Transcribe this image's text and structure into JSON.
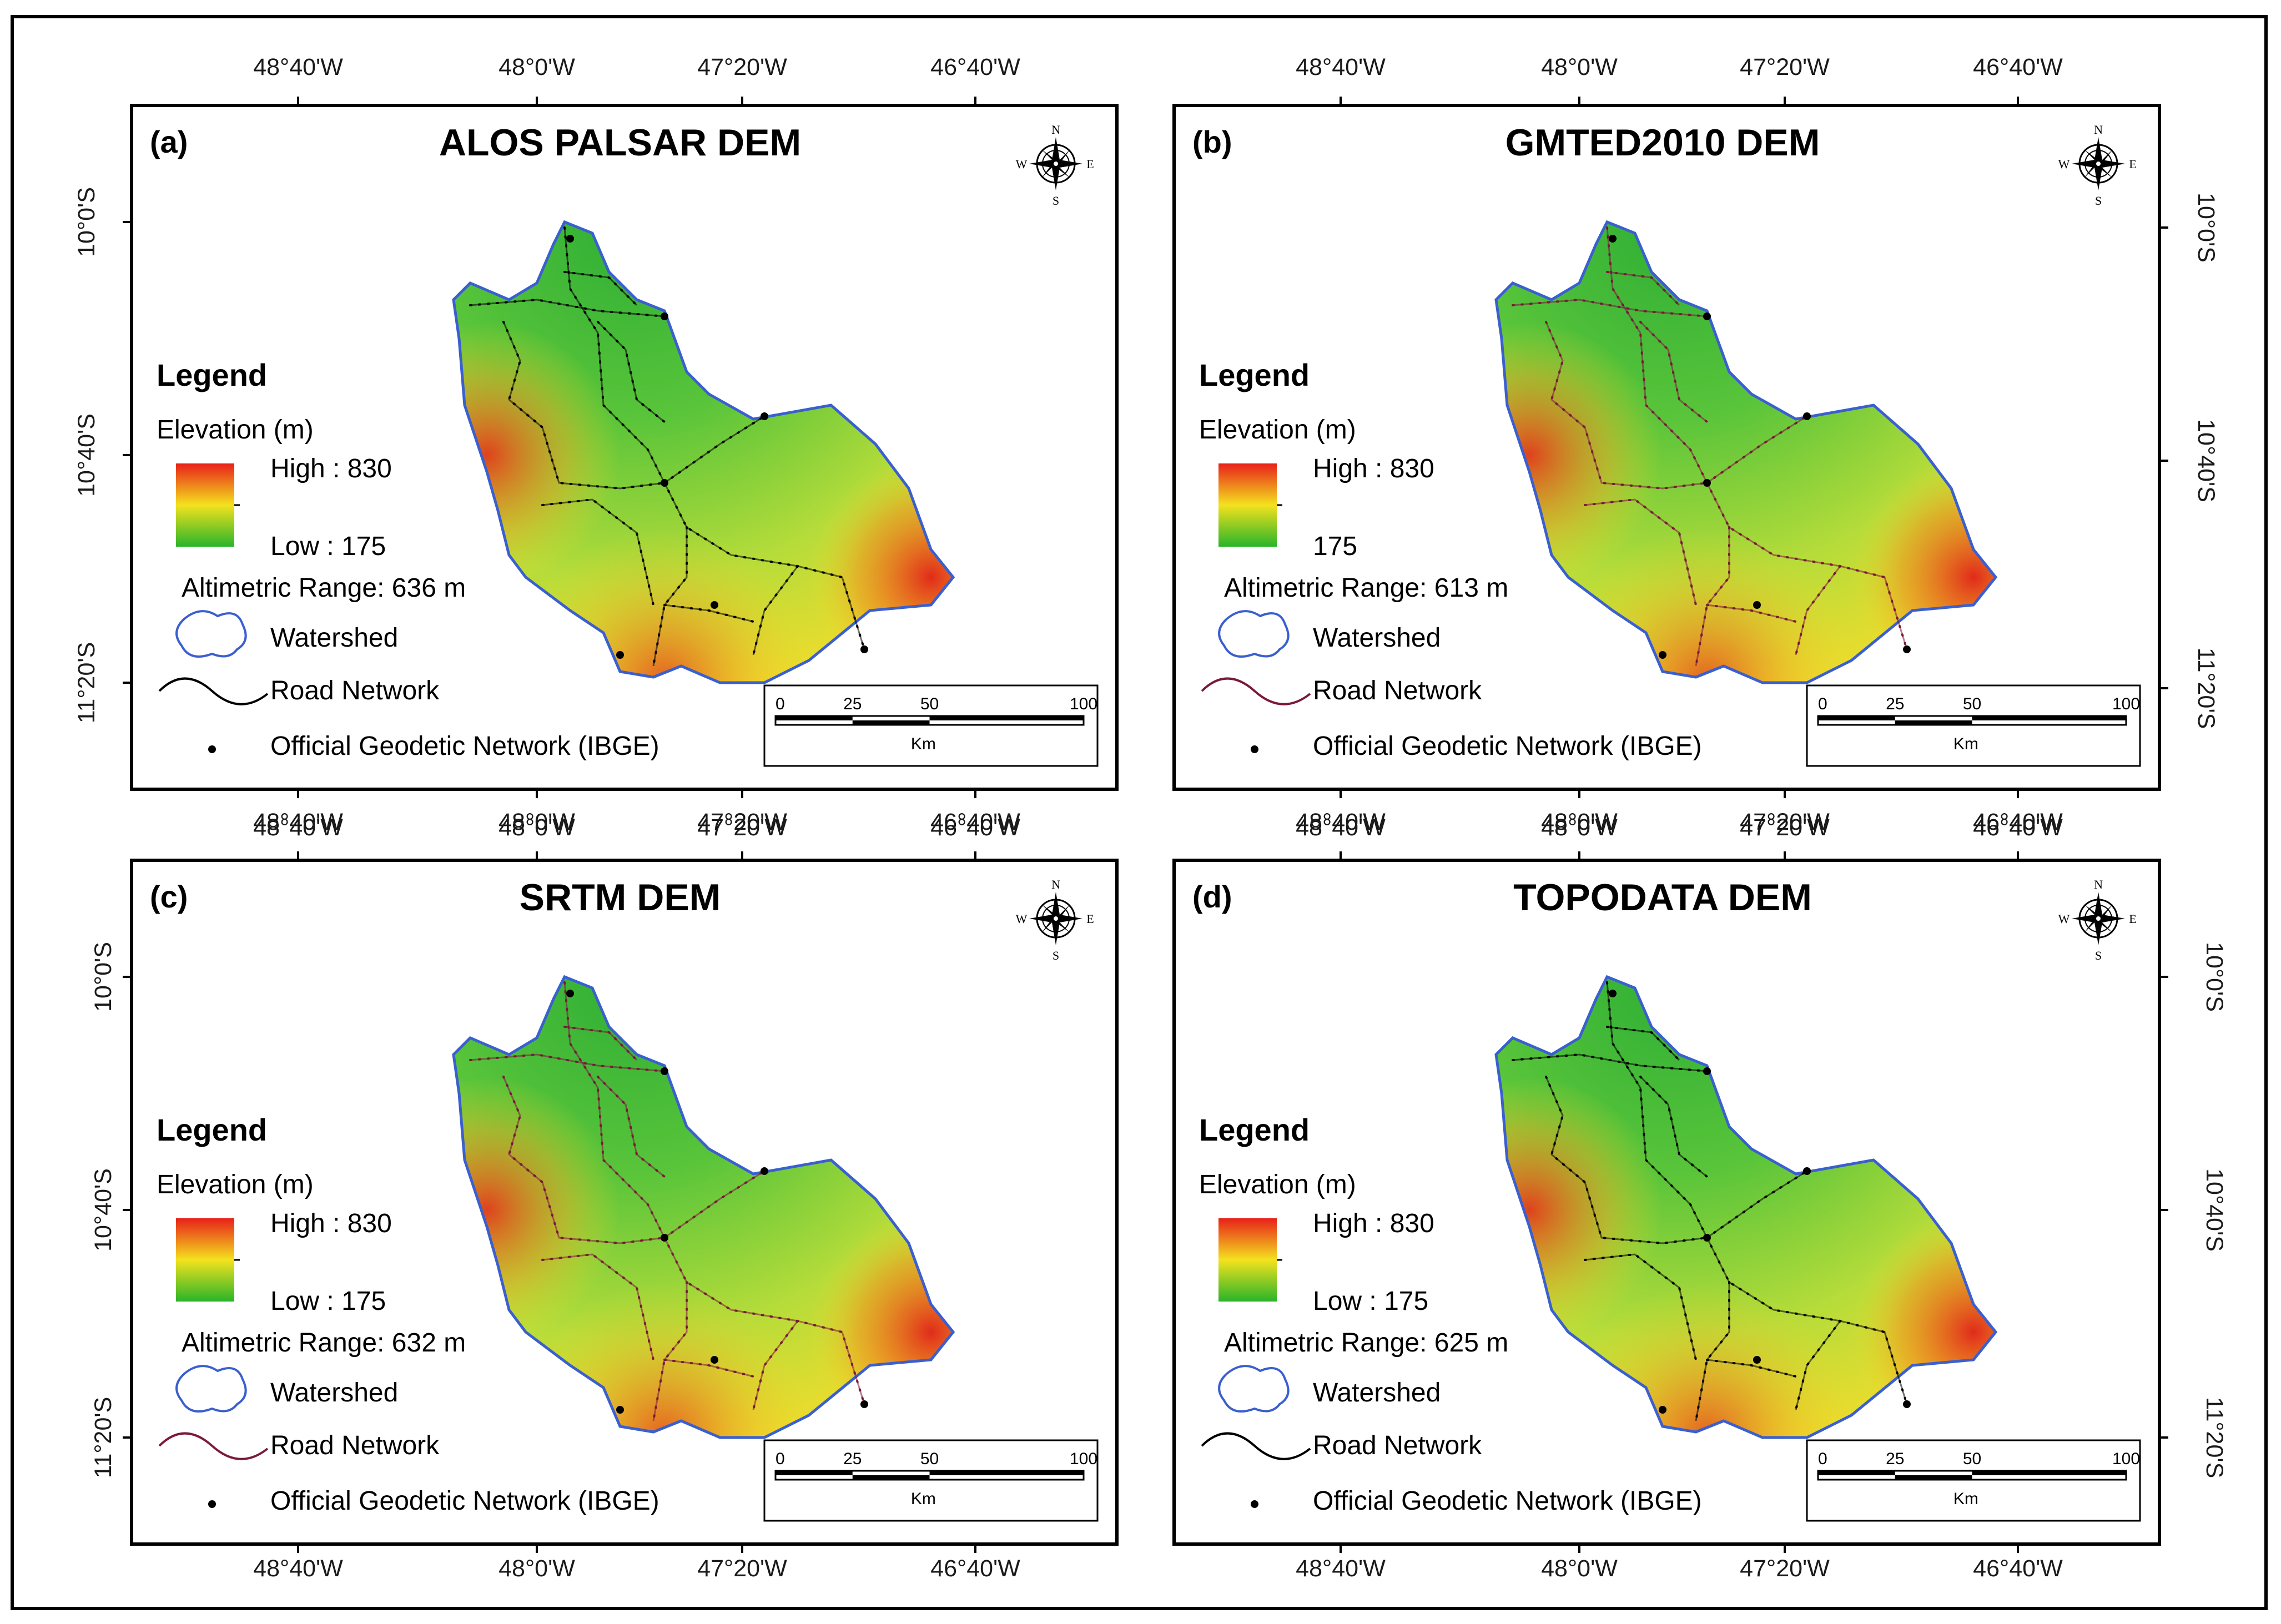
{
  "map_data": {
    "panels": [
      {
        "label": "(a)",
        "title": "ALOS PALSAR DEM",
        "high": "High : 830",
        "low": "Low : 175",
        "range": "Altimetric Range: 636 m",
        "road_color": "#000000"
      },
      {
        "label": "(b)",
        "title": "GMTED2010 DEM",
        "high": "High : 830",
        "low": "175",
        "range": "Altimetric Range: 613 m",
        "road_color": "#7a1a3a"
      },
      {
        "label": "(c)",
        "title": "SRTM DEM",
        "high": "High : 830",
        "low": "Low : 175",
        "range": "Altimetric Range: 632 m",
        "road_color": "#7a1a3a"
      },
      {
        "label": "(d)",
        "title": "TOPODATA DEM",
        "high": "High : 830",
        "low": "Low : 175",
        "range": "Altimetric Range: 625 m",
        "road_color": "#000000"
      }
    ],
    "legend": {
      "title": "Legend",
      "elevation_label": "Elevation (m)",
      "watershed": "Watershed",
      "road_network": "Road Network",
      "geodetic": "Official Geodetic Network (IBGE)"
    },
    "longitude_ticks": [
      "48°40'W",
      "48°0'W",
      "47°20'W",
      "46°40'W"
    ],
    "latitude_ticks": [
      "10°0'S",
      "10°40'S",
      "11°20'S"
    ],
    "scale_bar": {
      "ticks": [
        "0",
        "25",
        "50",
        "100"
      ],
      "unit": "Km"
    },
    "compass": {
      "n": "N",
      "s": "S",
      "e": "E",
      "w": "W"
    },
    "colors": {
      "elevation_high": "#e8201a",
      "elevation_mid": "#f4e21e",
      "elevation_low": "#29b42a",
      "watershed": "#3a5fcf",
      "road_black": "#000000",
      "road_purple": "#7a1a3a"
    }
  }
}
